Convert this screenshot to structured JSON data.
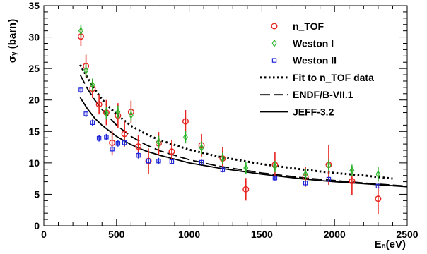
{
  "chart_data": {
    "type": "scatter",
    "title": "",
    "xlabel": "Eₙ(eV)",
    "ylabel": "σᵧ (barn)",
    "xlim": [
      0,
      2500
    ],
    "ylim": [
      0,
      35
    ],
    "x_ticks": [
      0,
      500,
      1000,
      1500,
      2000,
      2500
    ],
    "x_tick_labels": [
      "0",
      "500",
      "1000",
      "1500",
      "2000",
      "2500"
    ],
    "y_ticks": [
      0,
      5,
      10,
      15,
      20,
      25,
      30,
      35
    ],
    "y_tick_labels": [
      "0",
      "5",
      "10",
      "15",
      "20",
      "25",
      "30",
      "35"
    ],
    "grid": false,
    "legend_position": "top-right",
    "series": [
      {
        "name": "n_TOF",
        "kind": "points",
        "marker": "circle",
        "color": "#e8231e",
        "points": [
          {
            "x": 255,
            "y": 30.1,
            "err": 1.5
          },
          {
            "x": 290,
            "y": 25.4,
            "err": 1.8
          },
          {
            "x": 335,
            "y": 21.8,
            "err": 1.5
          },
          {
            "x": 380,
            "y": 19.3,
            "err": 1.6
          },
          {
            "x": 430,
            "y": 18.0,
            "err": 2.0
          },
          {
            "x": 470,
            "y": 13.2,
            "err": 2.0
          },
          {
            "x": 510,
            "y": 17.5,
            "err": 2.0
          },
          {
            "x": 555,
            "y": 14.6,
            "err": 2.0
          },
          {
            "x": 600,
            "y": 18.1,
            "err": 1.8
          },
          {
            "x": 650,
            "y": 12.6,
            "err": 1.8
          },
          {
            "x": 720,
            "y": 10.3,
            "err": 2.0
          },
          {
            "x": 790,
            "y": 13.1,
            "err": 1.8
          },
          {
            "x": 880,
            "y": 11.8,
            "err": 1.8
          },
          {
            "x": 975,
            "y": 16.6,
            "err": 1.8
          },
          {
            "x": 1085,
            "y": 12.8,
            "err": 1.8
          },
          {
            "x": 1230,
            "y": 10.7,
            "err": 1.8
          },
          {
            "x": 1390,
            "y": 5.8,
            "err": 1.8
          },
          {
            "x": 1590,
            "y": 9.7,
            "err": 2.0
          },
          {
            "x": 1800,
            "y": 7.8,
            "err": 1.6
          },
          {
            "x": 1960,
            "y": 9.7,
            "err": 3.2
          },
          {
            "x": 2120,
            "y": 7.1,
            "err": 2.2
          },
          {
            "x": 2300,
            "y": 4.3,
            "err": 2.5
          }
        ]
      },
      {
        "name": "Weston I",
        "kind": "points",
        "marker": "diamond",
        "color": "#2bb52b",
        "points": [
          {
            "x": 255,
            "y": 31.0,
            "err": 1.0
          },
          {
            "x": 290,
            "y": 24.7,
            "err": 1.0
          },
          {
            "x": 335,
            "y": 22.4,
            "err": 1.0
          },
          {
            "x": 430,
            "y": 17.9,
            "err": 1.0
          },
          {
            "x": 510,
            "y": 18.1,
            "err": 1.0
          },
          {
            "x": 600,
            "y": 17.6,
            "err": 1.0
          },
          {
            "x": 790,
            "y": 13.3,
            "err": 1.0
          },
          {
            "x": 975,
            "y": 14.1,
            "err": 1.0
          },
          {
            "x": 1085,
            "y": 12.4,
            "err": 1.0
          },
          {
            "x": 1230,
            "y": 10.7,
            "err": 0.9
          },
          {
            "x": 1390,
            "y": 9.2,
            "err": 0.9
          },
          {
            "x": 1590,
            "y": 9.4,
            "err": 0.9
          },
          {
            "x": 1800,
            "y": 8.2,
            "err": 0.9
          },
          {
            "x": 1960,
            "y": 9.6,
            "err": 0.9
          },
          {
            "x": 2120,
            "y": 8.8,
            "err": 0.9
          },
          {
            "x": 2300,
            "y": 8.2,
            "err": 1.2
          }
        ]
      },
      {
        "name": "Weston II",
        "kind": "points",
        "marker": "square",
        "color": "#1f26d9",
        "points": [
          {
            "x": 255,
            "y": 21.6,
            "err": 0.5
          },
          {
            "x": 290,
            "y": 17.8,
            "err": 0.5
          },
          {
            "x": 335,
            "y": 16.4,
            "err": 0.5
          },
          {
            "x": 380,
            "y": 13.9,
            "err": 0.5
          },
          {
            "x": 430,
            "y": 14.1,
            "err": 0.5
          },
          {
            "x": 470,
            "y": 12.2,
            "err": 0.5
          },
          {
            "x": 510,
            "y": 13.1,
            "err": 0.5
          },
          {
            "x": 555,
            "y": 13.2,
            "err": 0.5
          },
          {
            "x": 650,
            "y": 11.2,
            "err": 0.5
          },
          {
            "x": 720,
            "y": 10.3,
            "err": 0.5
          },
          {
            "x": 790,
            "y": 10.3,
            "err": 0.5
          },
          {
            "x": 880,
            "y": 10.2,
            "err": 0.4
          },
          {
            "x": 1085,
            "y": 10.1,
            "err": 0.4
          },
          {
            "x": 1230,
            "y": 8.9,
            "err": 0.4
          },
          {
            "x": 1590,
            "y": 7.6,
            "err": 0.4
          },
          {
            "x": 1800,
            "y": 6.8,
            "err": 0.4
          },
          {
            "x": 1960,
            "y": 7.4,
            "err": 0.4
          },
          {
            "x": 2300,
            "y": 6.3,
            "err": 0.4
          }
        ]
      },
      {
        "name": "Fit to n_TOF data",
        "kind": "line",
        "style": "dotted",
        "color": "#000000",
        "x": [
          250,
          300,
          350,
          400,
          500,
          600,
          700,
          800,
          1000,
          1200,
          1500,
          1800,
          2000,
          2200,
          2400
        ],
        "values": [
          25.6,
          23.5,
          21.7,
          20.1,
          17.7,
          15.9,
          14.6,
          13.6,
          12.1,
          11.0,
          9.8,
          8.9,
          8.4,
          8.0,
          7.5
        ]
      },
      {
        "name": "ENDF/B-VII.1",
        "kind": "line",
        "style": "dashed",
        "color": "#000000",
        "x": [
          250,
          300,
          350,
          400,
          500,
          600,
          700,
          800,
          1000,
          1200,
          1500,
          1800,
          2000,
          2200,
          2500
        ],
        "values": [
          24.0,
          21.8,
          20.0,
          18.5,
          16.0,
          14.2,
          12.9,
          11.9,
          10.5,
          9.5,
          8.4,
          7.6,
          7.2,
          6.8,
          6.3
        ]
      },
      {
        "name": "JEFF-3.2",
        "kind": "line",
        "style": "solid",
        "color": "#000000",
        "x": [
          250,
          300,
          350,
          400,
          500,
          600,
          700,
          800,
          1000,
          1200,
          1500,
          1800,
          2000,
          2200,
          2500
        ],
        "values": [
          20.4,
          18.6,
          17.1,
          16.0,
          14.2,
          12.9,
          11.9,
          11.2,
          10.0,
          9.2,
          8.2,
          7.4,
          7.0,
          6.7,
          6.2
        ]
      }
    ]
  }
}
